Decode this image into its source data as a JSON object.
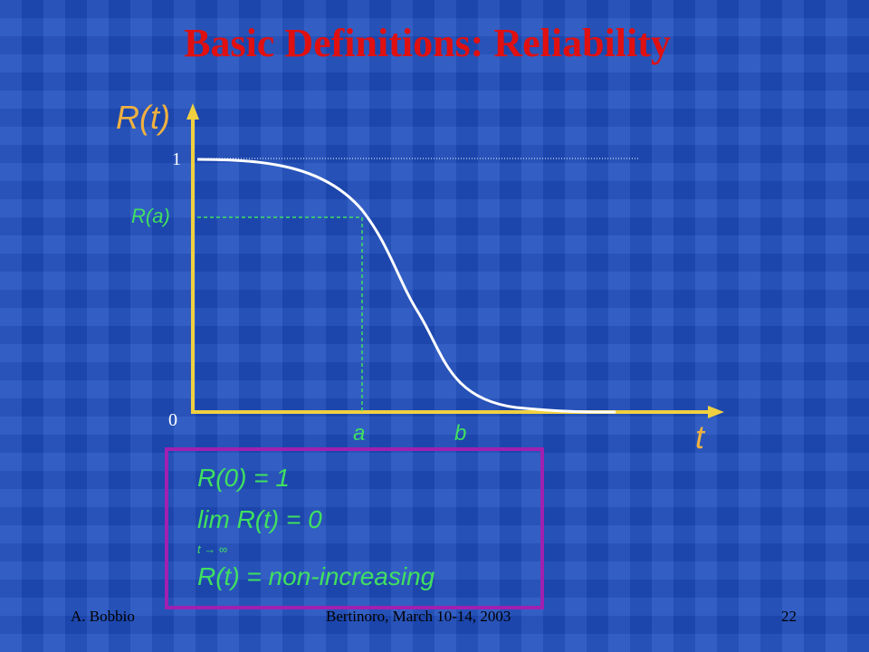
{
  "header": {
    "title": "Basic Definitions: Reliability"
  },
  "diagram": {
    "y_axis_label": "R(t)",
    "x_axis_label": "t",
    "y_tick_top": "1",
    "y_tick_bottom": "0",
    "y_marker": "R(a)",
    "x_marker_a": "a",
    "x_marker_b": "b"
  },
  "box": {
    "lines": [
      "R(0) = 1",
      "lim R(t) = 0",
      "t → ∞",
      "R(t) = non-increasing"
    ]
  },
  "footer": {
    "author": "A. Bobbio",
    "event": "Bertinoro, March 10-14, 2003",
    "page": "22"
  }
}
